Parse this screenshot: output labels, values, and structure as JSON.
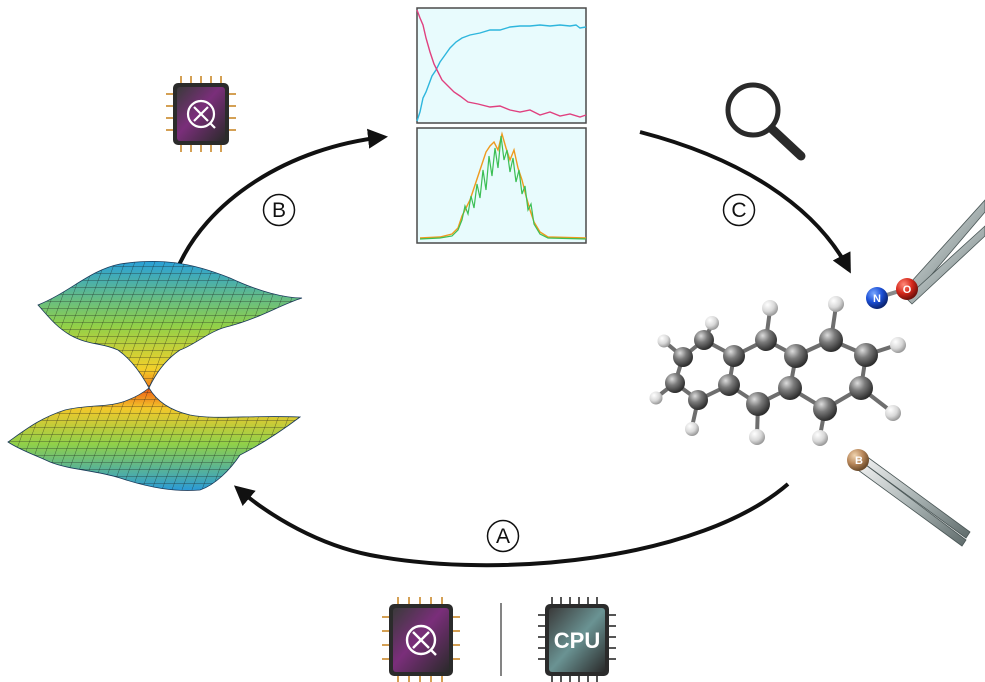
{
  "steps": {
    "a": "A",
    "b": "B",
    "c": "C"
  },
  "atoms": {
    "n": "N",
    "o": "O",
    "b": "B"
  },
  "chips": {
    "cpu_label": "CPU"
  },
  "colors": {
    "plot_bg": "#e8fbfd",
    "line_pink": "#e0407f",
    "line_blue": "#2eb6dd",
    "line_orange": "#ee9a1e",
    "line_green": "#3cbf55",
    "qpu_body": "#7a2e7a",
    "cpu_body": "#5a7d7d",
    "arrow": "#111111"
  },
  "icons": [
    "quantum-processor-icon",
    "cpu-chip-icon",
    "magnifying-glass-icon",
    "tweezers-icon"
  ]
}
